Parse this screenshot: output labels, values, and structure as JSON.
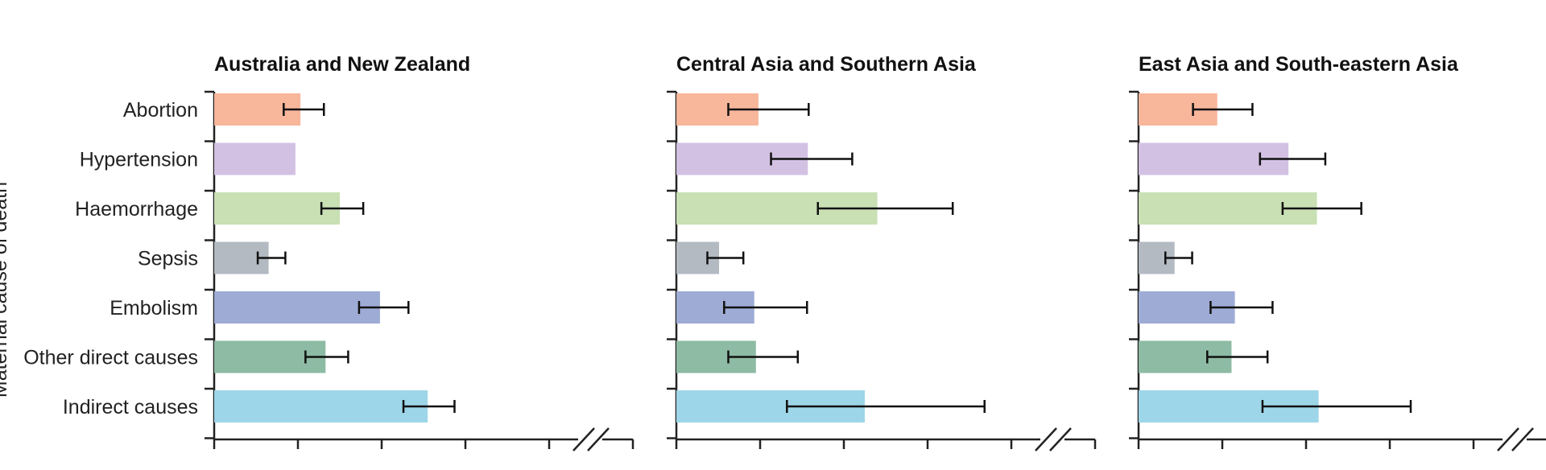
{
  "y_axis_title": "Maternal cause of death",
  "categories": [
    "Abortion",
    "Hypertension",
    "Haemorrhage",
    "Sepsis",
    "Embolism",
    "Other direct causes",
    "Indirect causes"
  ],
  "colors": {
    "Abortion": "#f8b69b",
    "Hypertension": "#d3c1e3",
    "Haemorrhage": "#c8e0b4",
    "Sepsis": "#b3bac2",
    "Embolism": "#9dabd5",
    "Other direct causes": "#8dbba3",
    "Indirect causes": "#9dd6e8"
  },
  "chart_data": [
    {
      "type": "bar",
      "orientation": "horizontal",
      "title": "Australia and New Zealand",
      "categories": [
        "Abortion",
        "Hypertension",
        "Haemorrhage",
        "Sepsis",
        "Embolism",
        "Other direct causes",
        "Indirect causes"
      ],
      "values": [
        1.03,
        0.97,
        1.5,
        0.65,
        1.98,
        1.33,
        2.55
      ],
      "error_low": [
        0.83,
        null,
        1.28,
        0.52,
        1.73,
        1.09,
        2.26
      ],
      "error_high": [
        1.31,
        null,
        1.78,
        0.85,
        2.32,
        1.6,
        2.87
      ],
      "xlim": [
        0,
        5
      ],
      "grid": false,
      "axis_break": true
    },
    {
      "type": "bar",
      "orientation": "horizontal",
      "title": "Central Asia and Southern Asia",
      "categories": [
        "Abortion",
        "Hypertension",
        "Haemorrhage",
        "Sepsis",
        "Embolism",
        "Other direct causes",
        "Indirect causes"
      ],
      "values": [
        0.98,
        1.57,
        2.4,
        0.51,
        0.93,
        0.95,
        2.25
      ],
      "error_low": [
        0.62,
        1.13,
        1.69,
        0.37,
        0.57,
        0.62,
        1.32
      ],
      "error_high": [
        1.58,
        2.1,
        3.3,
        0.8,
        1.56,
        1.45,
        3.68
      ],
      "xlim": [
        0,
        5
      ],
      "grid": false,
      "axis_break": true
    },
    {
      "type": "bar",
      "orientation": "horizontal",
      "title": "East Asia and South-eastern Asia",
      "categories": [
        "Abortion",
        "Hypertension",
        "Haemorrhage",
        "Sepsis",
        "Embolism",
        "Other direct causes",
        "Indirect causes"
      ],
      "values": [
        0.94,
        1.79,
        2.13,
        0.43,
        1.15,
        1.11,
        2.15
      ],
      "error_low": [
        0.65,
        1.45,
        1.72,
        0.32,
        0.86,
        0.82,
        1.48
      ],
      "error_high": [
        1.36,
        2.23,
        2.66,
        0.64,
        1.6,
        1.54,
        3.25
      ],
      "xlim": [
        0,
        5
      ],
      "grid": false,
      "axis_break": true
    }
  ]
}
